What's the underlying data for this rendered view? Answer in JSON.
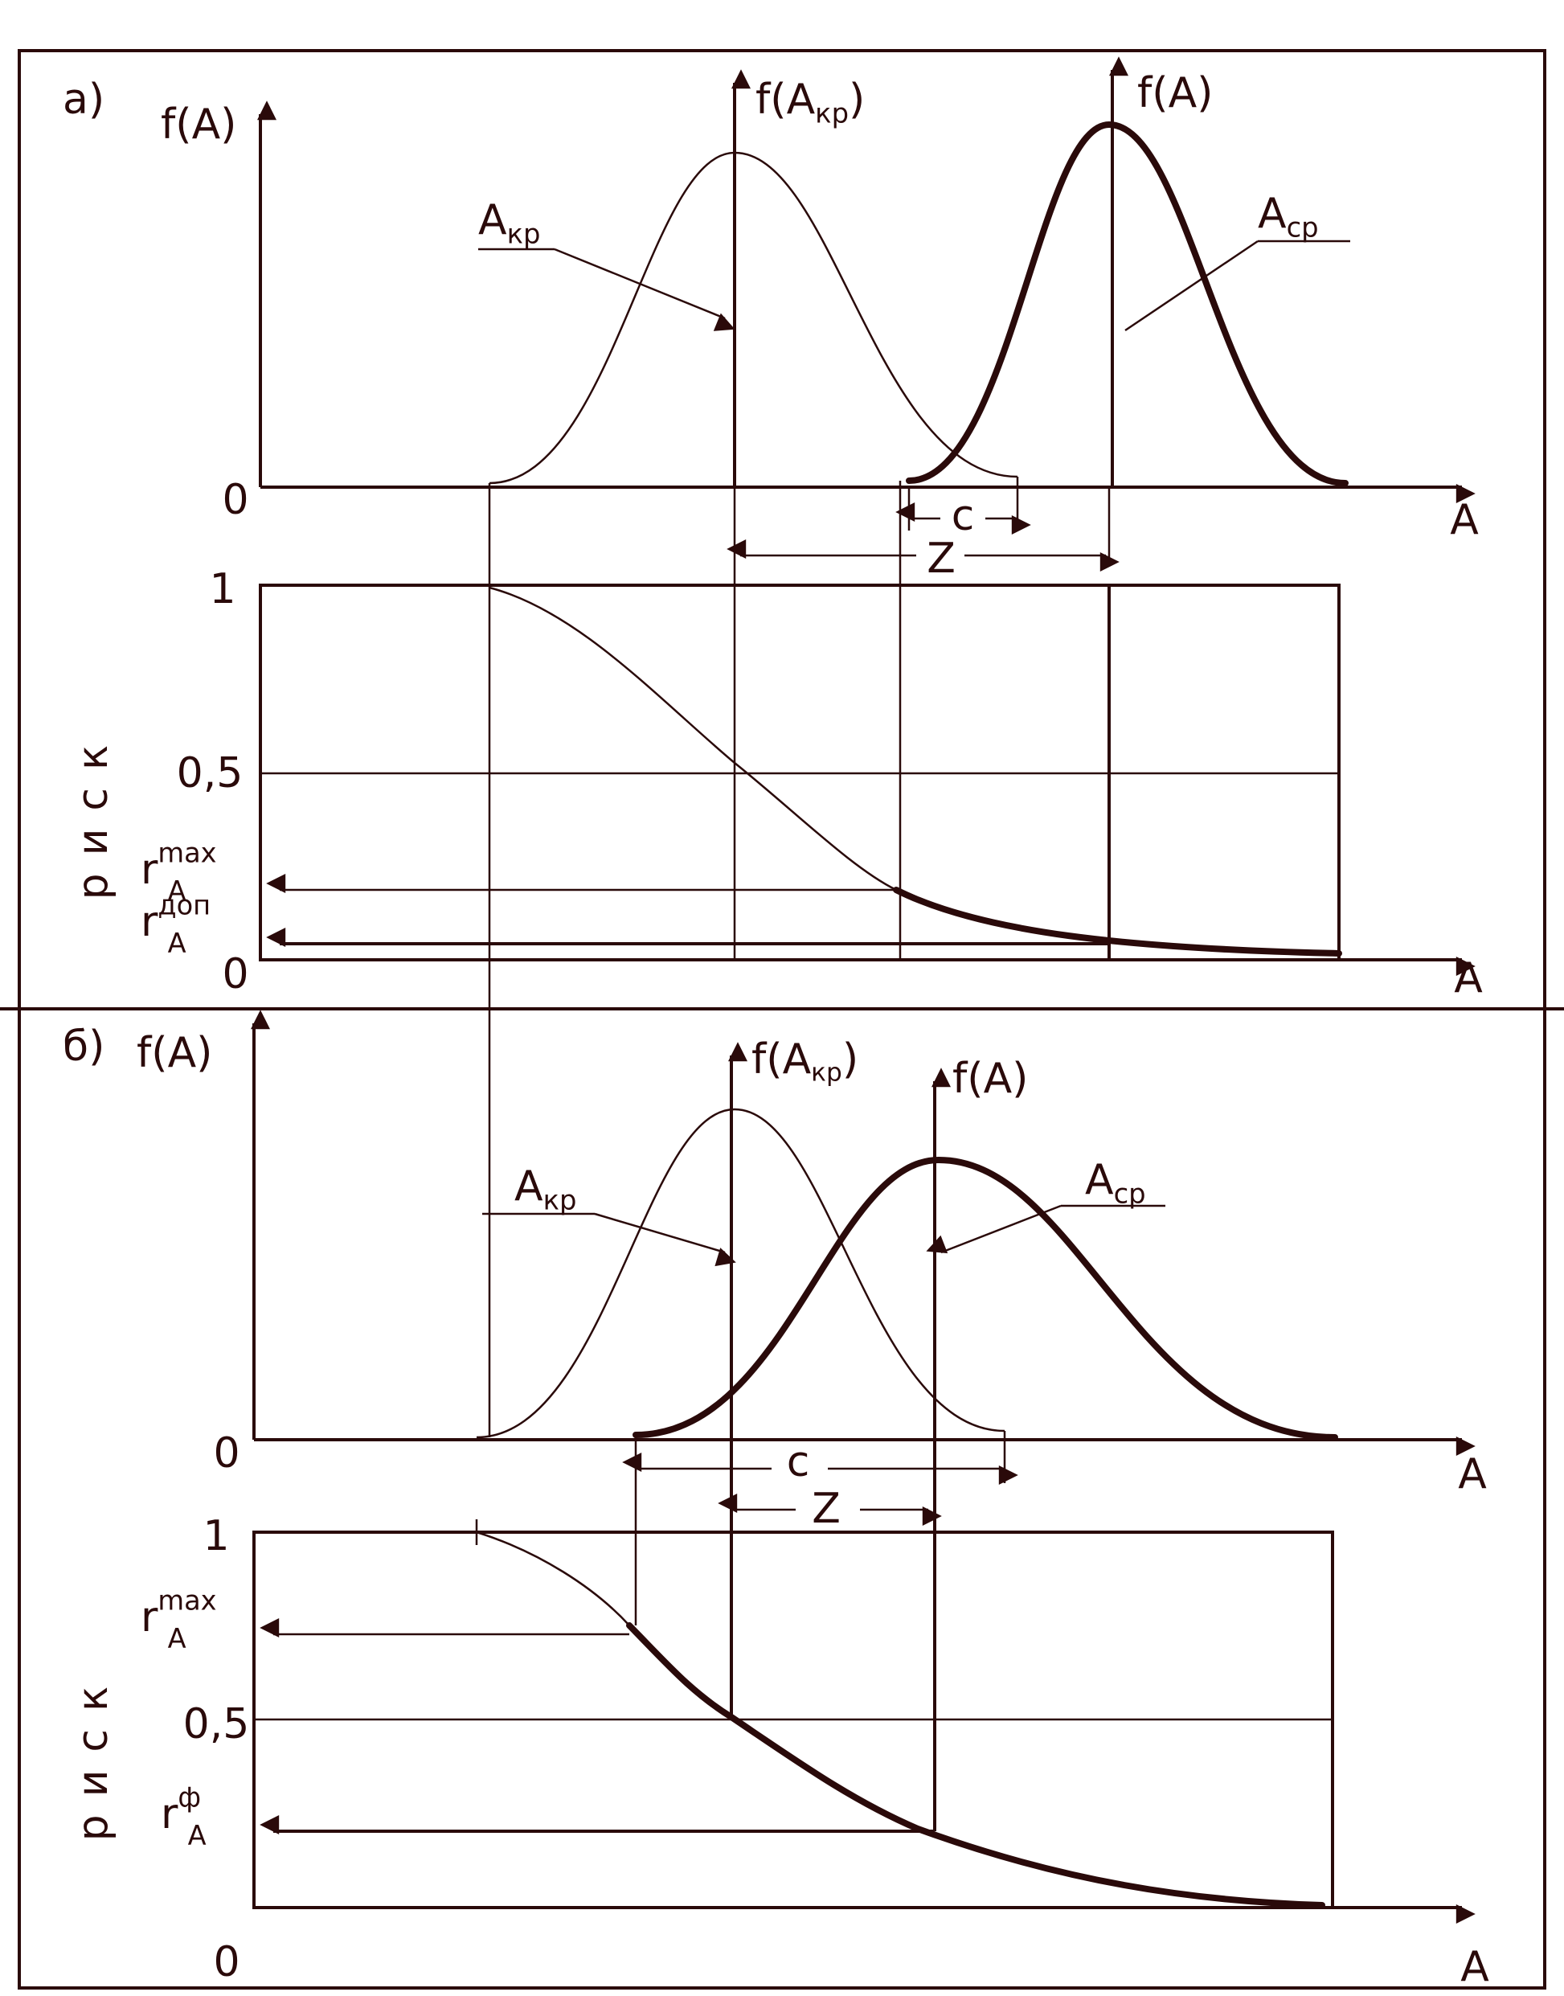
{
  "panel_a": {
    "tag": "а)",
    "density_axis": "f(A)",
    "critical_axis": {
      "base": "f(A",
      "sub": "кр",
      "close": ")"
    },
    "actual_axis": "f(A)",
    "critical_label": {
      "base": "A",
      "sub": "кр"
    },
    "mean_label": {
      "base": "A",
      "sub": "ср"
    },
    "origin": "0",
    "x_label": "A",
    "c_label": "c",
    "z_label": "Z",
    "risk": {
      "y_label": "риск",
      "tick_1": "1",
      "tick_half": "0,5",
      "tick_0": "0",
      "x_label": "A",
      "r_max": {
        "base": "r",
        "sub": "A",
        "sup": "max"
      },
      "r_lim": {
        "base": "r",
        "sub": "A",
        "sup": "доп"
      }
    }
  },
  "panel_b": {
    "tag": "б)",
    "density_axis": "f(A)",
    "critical_axis": {
      "base": "f(A",
      "sub": "кр",
      "close": ")"
    },
    "actual_axis": "f(A)",
    "critical_label": {
      "base": "A",
      "sub": "кр"
    },
    "mean_label": {
      "base": "A",
      "sub": "ср"
    },
    "origin": "0",
    "x_label": "A",
    "c_label": "c",
    "z_label": "Z",
    "risk": {
      "y_label": "риск",
      "tick_1": "1",
      "tick_max": {
        "base": "r",
        "sub": "A",
        "sup": "max"
      },
      "tick_half": "0,5",
      "r_fact": {
        "base": "r",
        "sub": "A",
        "sup": "ф"
      },
      "tick_0": "0",
      "x_label": "A"
    }
  }
}
